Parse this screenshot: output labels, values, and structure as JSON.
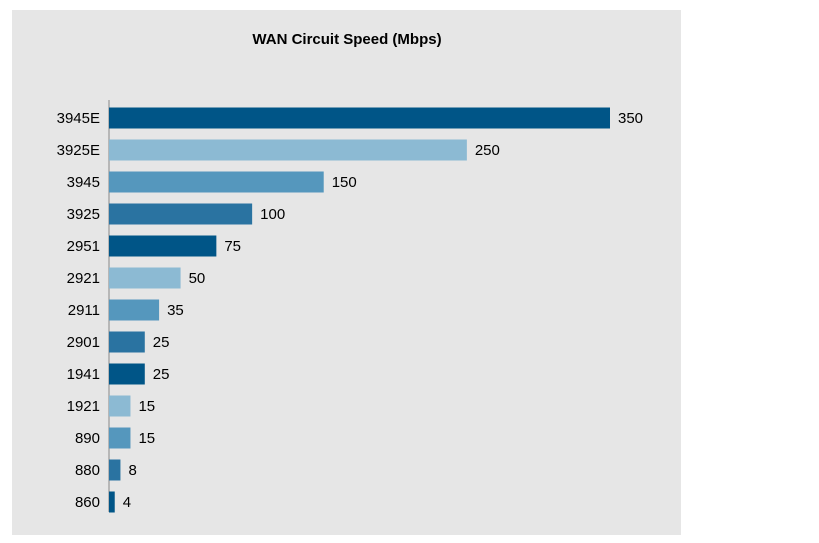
{
  "chart_data": {
    "type": "hbar",
    "title": "WAN Circuit Speed (Mbps)",
    "categories": [
      "3945E",
      "3925E",
      "3945",
      "3925",
      "2951",
      "2921",
      "2911",
      "2901",
      "1941",
      "1921",
      "890",
      "880",
      "860"
    ],
    "values": [
      350,
      250,
      150,
      100,
      75,
      50,
      35,
      25,
      25,
      15,
      15,
      8,
      4
    ],
    "colors": [
      "#005587",
      "#8cbad3",
      "#5597bd",
      "#2a73a1",
      "#005587",
      "#8cbad3",
      "#5597bd",
      "#2a73a1",
      "#005587",
      "#8cbad3",
      "#5597bd",
      "#2a73a1",
      "#005587"
    ]
  }
}
